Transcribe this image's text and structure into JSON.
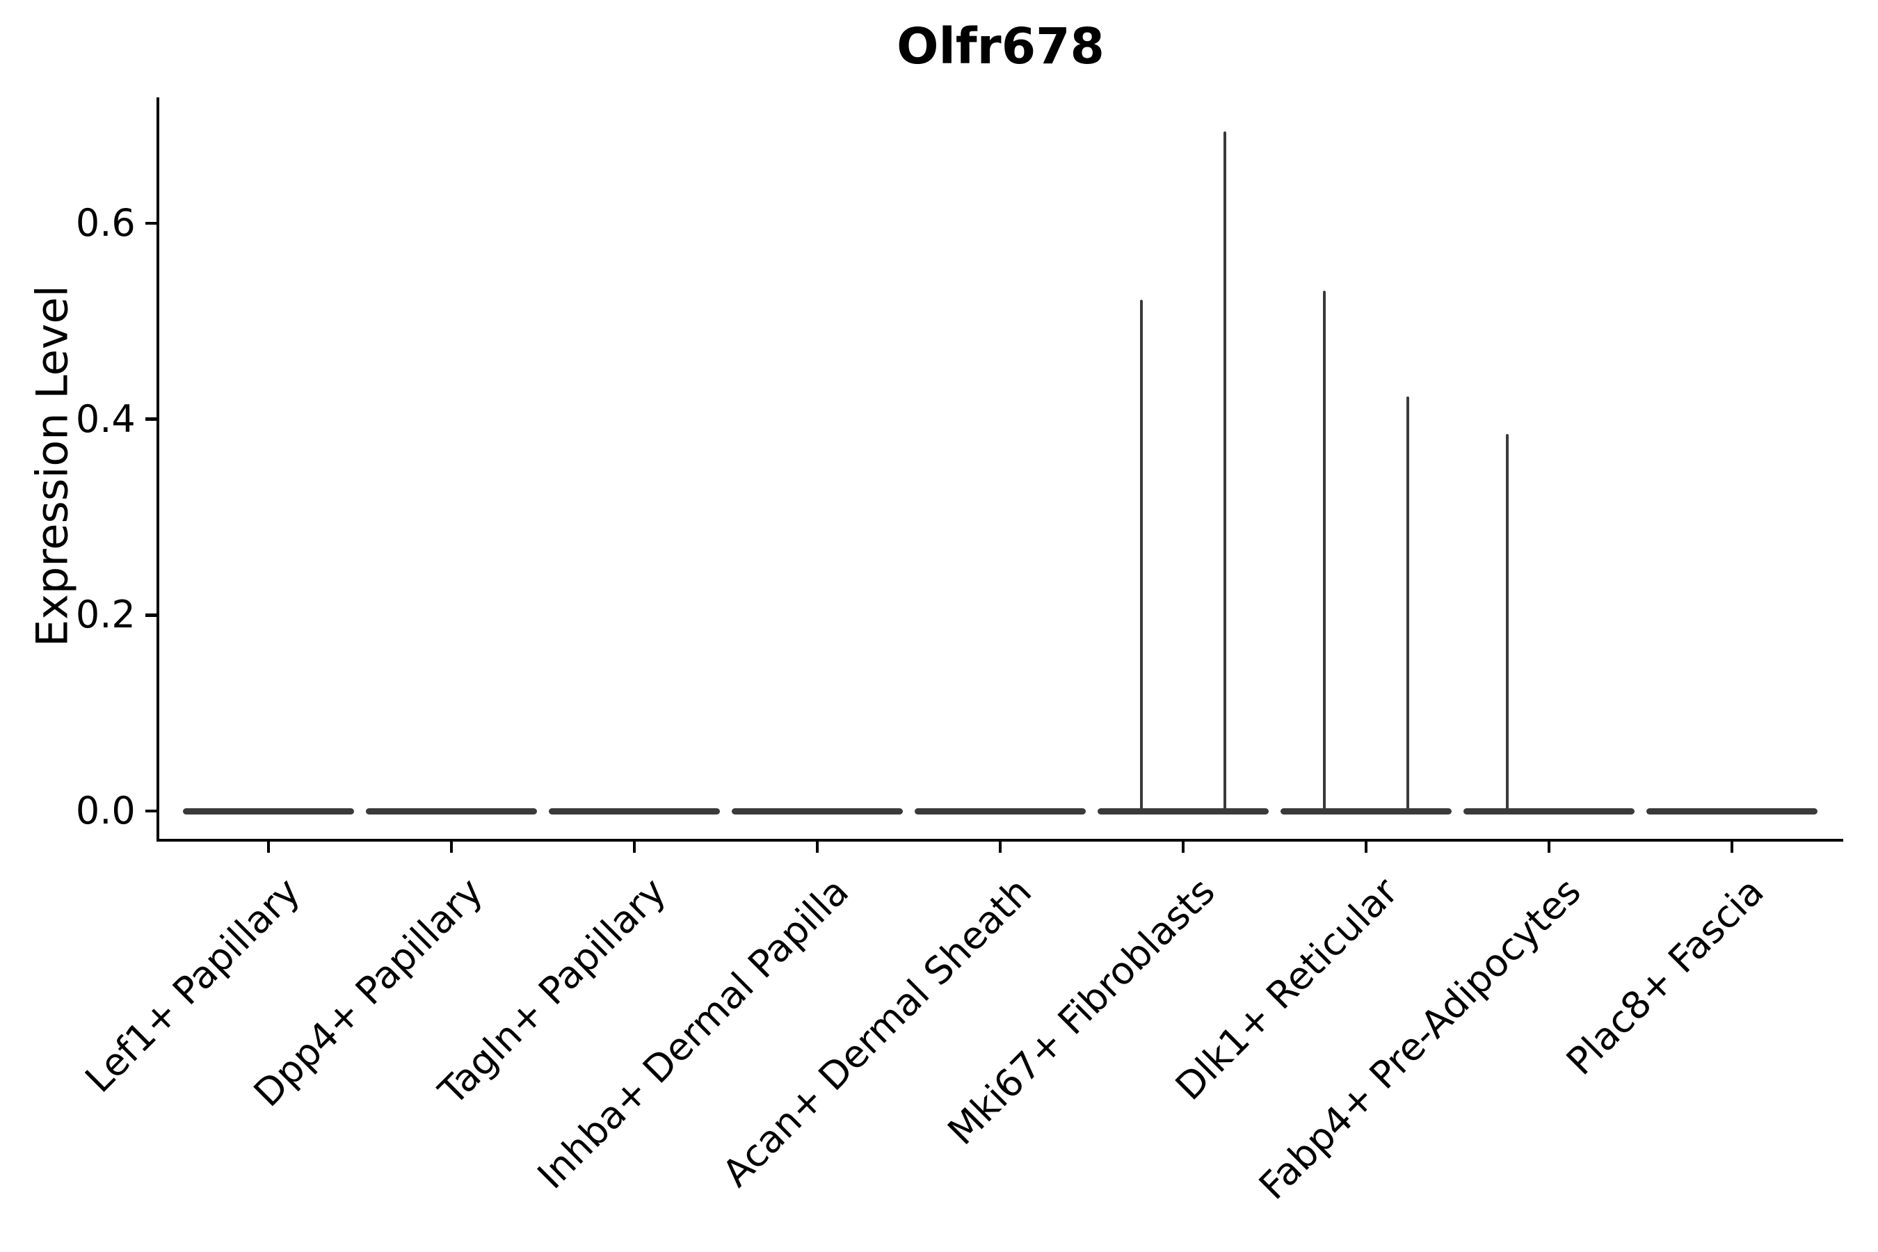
{
  "title": "Olfr678",
  "y_axis": {
    "label": "Expression Level",
    "tick_labels": [
      "0.0",
      "0.2",
      "0.4",
      "0.6"
    ],
    "tick_values": [
      0.0,
      0.2,
      0.4,
      0.6
    ]
  },
  "chart_data": {
    "type": "violin",
    "title": "Olfr678",
    "xlabel": "",
    "ylabel": "Expression Level",
    "ylim": [
      -0.03,
      0.73
    ],
    "yticks": [
      0.0,
      0.2,
      0.4,
      0.6
    ],
    "grid": false,
    "legend": null,
    "categories": [
      "Lef1+ Papillary",
      "Dpp4+ Papillary",
      "Tagln+ Papillary",
      "Inhba+ Dermal Papilla",
      "Acan+ Dermal Sheath",
      "Mki67+ Fibroblasts",
      "Dlk1+ Reticular",
      "Fabp4+ Pre-Adipocytes",
      "Plac8+ Fascia"
    ],
    "violins": [
      {
        "label": "Lef1+ Papillary",
        "base_value": 0.0,
        "spike_left": null,
        "spike_right": null
      },
      {
        "label": "Dpp4+ Papillary",
        "base_value": 0.0,
        "spike_left": null,
        "spike_right": null
      },
      {
        "label": "Tagln+ Papillary",
        "base_value": 0.0,
        "spike_left": null,
        "spike_right": null
      },
      {
        "label": "Inhba+ Dermal Papilla",
        "base_value": 0.0,
        "spike_left": null,
        "spike_right": null
      },
      {
        "label": "Acan+ Dermal Sheath",
        "base_value": 0.0,
        "spike_left": null,
        "spike_right": null
      },
      {
        "label": "Mki67+ Fibroblasts",
        "base_value": 0.0,
        "spike_left": 0.522,
        "spike_right": 0.694
      },
      {
        "label": "Dlk1+ Reticular",
        "base_value": 0.0,
        "spike_left": 0.531,
        "spike_right": 0.423
      },
      {
        "label": "Fabp4+ Pre-Adipocytes",
        "base_value": 0.0,
        "spike_left": 0.385,
        "spike_right": null
      },
      {
        "label": "Plac8+ Fascia",
        "base_value": 0.0,
        "spike_left": null,
        "spike_right": null
      }
    ]
  },
  "colors": {
    "violin": "#3a3a3a",
    "axis": "#000000",
    "text": "#000000",
    "background": "#ffffff"
  }
}
